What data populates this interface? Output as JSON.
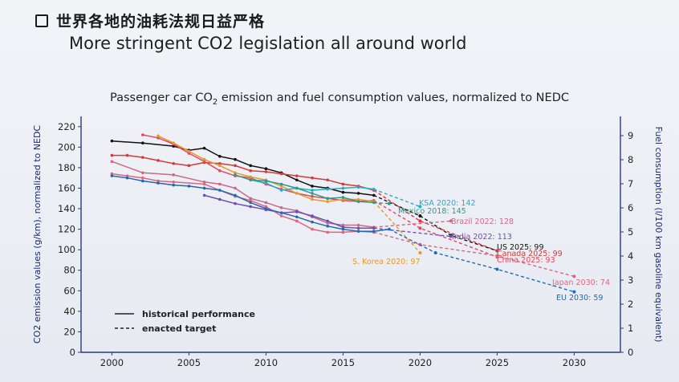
{
  "header": {
    "title_zh": "世界各地的油耗法规日益严格",
    "title_en": "More stringent CO2 legislation all around world"
  },
  "chart_data": {
    "type": "line",
    "title_prefix": "Passenger car CO",
    "title_sub": "2",
    "title_suffix": " emission and fuel consumption values, normalized to NEDC",
    "ylabel": "CO2 emission values (g/km), normalized to NEDC",
    "y2label": "Fuel consumption (l/100 km gasoline equivalent)",
    "xlim": [
      1998,
      2033
    ],
    "ylim": [
      0,
      230
    ],
    "y2lim": [
      0,
      9.8
    ],
    "x_ticks": [
      2000,
      2005,
      2010,
      2015,
      2020,
      2025,
      2030
    ],
    "y_ticks": [
      0,
      20,
      40,
      60,
      80,
      100,
      120,
      140,
      160,
      180,
      200,
      220
    ],
    "y2_ticks": [
      0,
      1,
      2,
      3,
      4,
      5,
      6,
      7,
      8,
      9
    ],
    "legend": {
      "historical": "historical performance",
      "target": "enacted target"
    },
    "series": [
      {
        "color": "#111111",
        "historical": [
          [
            2000,
            206
          ],
          [
            2002,
            204
          ],
          [
            2004,
            201
          ],
          [
            2005,
            197
          ],
          [
            2006,
            199
          ],
          [
            2007,
            191
          ],
          [
            2008,
            188
          ],
          [
            2009,
            182
          ],
          [
            2010,
            179
          ],
          [
            2011,
            175
          ],
          [
            2012,
            168
          ],
          [
            2013,
            162
          ],
          [
            2014,
            160
          ],
          [
            2015,
            156
          ],
          [
            2016,
            155
          ],
          [
            2017,
            153
          ]
        ],
        "target": [
          [
            2017,
            153
          ],
          [
            2020,
            133
          ],
          [
            2022,
            114
          ],
          [
            2025,
            99
          ]
        ],
        "label": "US 2025: 99"
      },
      {
        "color": "#d33a3a",
        "historical": [
          [
            2000,
            192
          ],
          [
            2001,
            192
          ],
          [
            2002,
            190
          ],
          [
            2003,
            187
          ],
          [
            2004,
            184
          ],
          [
            2005,
            182
          ],
          [
            2006,
            185
          ],
          [
            2007,
            184
          ],
          [
            2008,
            182
          ],
          [
            2009,
            177
          ],
          [
            2010,
            176
          ],
          [
            2011,
            174
          ],
          [
            2012,
            172
          ],
          [
            2013,
            170
          ],
          [
            2014,
            168
          ],
          [
            2015,
            164
          ],
          [
            2016,
            162
          ],
          [
            2017,
            158
          ]
        ],
        "target": [
          [
            2017,
            158
          ],
          [
            2020,
            128
          ],
          [
            2025,
            99
          ]
        ],
        "label": "Canada 2025: 99"
      },
      {
        "color": "#e0495f",
        "historical": [
          [
            2002,
            212
          ],
          [
            2003,
            209
          ],
          [
            2004,
            203
          ],
          [
            2005,
            194
          ],
          [
            2006,
            186
          ],
          [
            2007,
            177
          ],
          [
            2008,
            172
          ],
          [
            2009,
            170
          ],
          [
            2010,
            164
          ],
          [
            2011,
            159
          ],
          [
            2012,
            155
          ],
          [
            2013,
            152
          ],
          [
            2014,
            150
          ],
          [
            2015,
            148
          ],
          [
            2016,
            147
          ],
          [
            2017,
            148
          ]
        ],
        "target": [
          [
            2017,
            148
          ],
          [
            2020,
            121
          ],
          [
            2025,
            93
          ]
        ],
        "label": "China 2025: 93"
      },
      {
        "color": "#e39a2a",
        "historical": [
          [
            2003,
            211
          ],
          [
            2004,
            204
          ],
          [
            2005,
            196
          ],
          [
            2006,
            188
          ],
          [
            2007,
            182
          ],
          [
            2008,
            175
          ],
          [
            2009,
            171
          ],
          [
            2010,
            168
          ],
          [
            2011,
            162
          ],
          [
            2012,
            155
          ],
          [
            2013,
            149
          ],
          [
            2014,
            147
          ],
          [
            2015,
            149
          ],
          [
            2016,
            149
          ],
          [
            2017,
            147
          ]
        ],
        "target": [
          [
            2017,
            147
          ],
          [
            2020,
            97
          ]
        ],
        "label": "S. Korea 2020: 97"
      },
      {
        "color": "#2aa9c9",
        "historical": [
          [
            2009,
            168
          ],
          [
            2010,
            165
          ],
          [
            2011,
            158
          ],
          [
            2012,
            160
          ],
          [
            2013,
            158
          ],
          [
            2014,
            159
          ],
          [
            2015,
            160
          ],
          [
            2016,
            161
          ],
          [
            2017,
            159
          ]
        ],
        "target": [
          [
            2017,
            159
          ],
          [
            2020,
            142
          ]
        ],
        "label": "KSA 2020: 142"
      },
      {
        "color": "#2f9a88",
        "historical": [
          [
            2008,
            173
          ],
          [
            2009,
            168
          ],
          [
            2010,
            167
          ],
          [
            2011,
            164
          ],
          [
            2012,
            160
          ],
          [
            2013,
            155
          ],
          [
            2014,
            150
          ],
          [
            2015,
            151
          ],
          [
            2016,
            147
          ],
          [
            2017,
            146
          ]
        ],
        "target": [
          [
            2017,
            146
          ],
          [
            2018,
            145
          ]
        ],
        "label": "Mexico 2018: 145"
      },
      {
        "color": "#c96b86",
        "historical": [
          [
            2000,
            186
          ],
          [
            2002,
            175
          ],
          [
            2004,
            173
          ],
          [
            2006,
            166
          ],
          [
            2007,
            164
          ],
          [
            2008,
            160
          ],
          [
            2009,
            150
          ],
          [
            2010,
            146
          ],
          [
            2011,
            141
          ],
          [
            2012,
            138
          ],
          [
            2013,
            132
          ],
          [
            2014,
            126
          ],
          [
            2015,
            124
          ],
          [
            2016,
            124
          ],
          [
            2017,
            122
          ]
        ],
        "target": [
          [
            2017,
            122
          ],
          [
            2022,
            128
          ]
        ],
        "label": "Brazil 2022: 128"
      },
      {
        "color": "#6d4fb0",
        "historical": [
          [
            2006,
            153
          ],
          [
            2007,
            149
          ],
          [
            2008,
            145
          ],
          [
            2009,
            142
          ],
          [
            2010,
            139
          ],
          [
            2011,
            136
          ],
          [
            2012,
            137
          ],
          [
            2013,
            133
          ],
          [
            2014,
            128
          ],
          [
            2015,
            122
          ],
          [
            2016,
            121
          ],
          [
            2017,
            121
          ]
        ],
        "target": [
          [
            2017,
            121
          ],
          [
            2022,
            113
          ]
        ],
        "label": "India 2022: 113"
      },
      {
        "color": "#d9687f",
        "historical": [
          [
            2000,
            174
          ],
          [
            2001,
            172
          ],
          [
            2002,
            170
          ],
          [
            2003,
            167
          ],
          [
            2004,
            166
          ],
          [
            2006,
            164
          ],
          [
            2008,
            152
          ],
          [
            2009,
            148
          ],
          [
            2010,
            142
          ],
          [
            2011,
            133
          ],
          [
            2012,
            128
          ],
          [
            2013,
            120
          ],
          [
            2014,
            117
          ],
          [
            2015,
            117
          ],
          [
            2016,
            118
          ],
          [
            2017,
            117
          ]
        ],
        "target": [
          [
            2017,
            117
          ],
          [
            2020,
            105
          ],
          [
            2025,
            94
          ],
          [
            2030,
            74
          ]
        ],
        "label": "Japan 2030: 74"
      },
      {
        "color": "#2468b0",
        "historical": [
          [
            2000,
            172
          ],
          [
            2001,
            170
          ],
          [
            2002,
            167
          ],
          [
            2003,
            165
          ],
          [
            2004,
            163
          ],
          [
            2005,
            162
          ],
          [
            2006,
            160
          ],
          [
            2007,
            158
          ],
          [
            2008,
            153
          ],
          [
            2009,
            146
          ],
          [
            2010,
            140
          ],
          [
            2011,
            136
          ],
          [
            2012,
            132
          ],
          [
            2013,
            127
          ],
          [
            2014,
            123
          ],
          [
            2015,
            120
          ],
          [
            2016,
            118
          ],
          [
            2017,
            118
          ],
          [
            2018,
            120
          ]
        ],
        "target": [
          [
            2018,
            120
          ],
          [
            2021,
            97
          ],
          [
            2025,
            81
          ],
          [
            2030,
            59
          ]
        ],
        "label": "EU 2030: 59"
      }
    ]
  }
}
